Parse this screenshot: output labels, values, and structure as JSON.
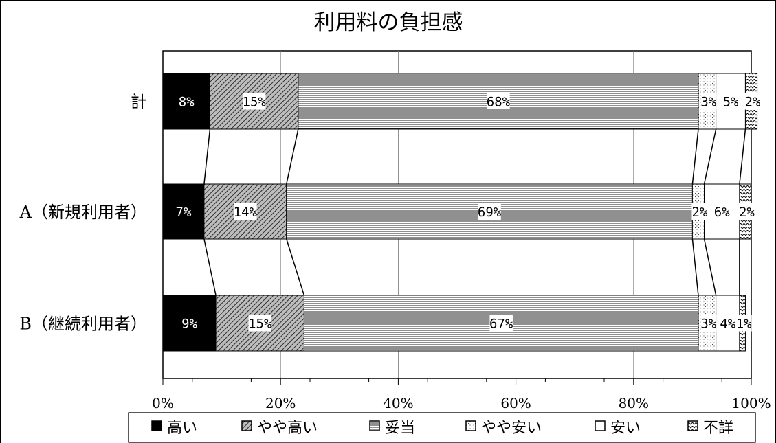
{
  "chart_data": {
    "type": "bar",
    "orientation": "horizontal",
    "stacked": true,
    "normalized_percent": true,
    "title": "利用料の負担感",
    "categories": [
      "計",
      "A（新規利用者）",
      "B（継続利用者）"
    ],
    "series": [
      {
        "name": "高い",
        "values": [
          8,
          7,
          9
        ],
        "labels": [
          "8%",
          "7%",
          "9%"
        ],
        "color": "#000000",
        "pattern": "solid"
      },
      {
        "name": "やや高い",
        "values": [
          15,
          14,
          15
        ],
        "labels": [
          "15%",
          "14%",
          "15%"
        ],
        "color": "#7a7a7a",
        "pattern": "diagonal"
      },
      {
        "name": "妥当",
        "values": [
          68,
          69,
          67
        ],
        "labels": [
          "68%",
          "69%",
          "67%"
        ],
        "color": "#ffffff",
        "pattern": "horizontal-lines"
      },
      {
        "name": "やや安い",
        "values": [
          3,
          2,
          3
        ],
        "labels": [
          "3%",
          "2%",
          "3%"
        ],
        "color": "#f2f2f2",
        "pattern": "dots"
      },
      {
        "name": "安い",
        "values": [
          5,
          6,
          4
        ],
        "labels": [
          "5%",
          "6%",
          "4%"
        ],
        "color": "#ffffff",
        "pattern": "blank"
      },
      {
        "name": "不詳",
        "values": [
          2,
          2,
          1
        ],
        "labels": [
          "2%",
          "2%",
          "1%"
        ],
        "color": "#ffffff",
        "pattern": "zigzag"
      }
    ],
    "xlim": [
      0,
      100
    ],
    "x_ticks": [
      0,
      20,
      40,
      60,
      80,
      100
    ],
    "x_tick_labels": [
      "0%",
      "20%",
      "40%",
      "60%",
      "80%",
      "100%"
    ],
    "legend_position": "bottom",
    "grid": "vertical",
    "connector_lines": true
  }
}
